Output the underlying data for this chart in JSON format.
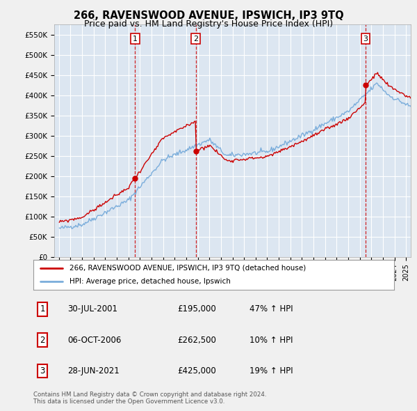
{
  "title": "266, RAVENSWOOD AVENUE, IPSWICH, IP3 9TQ",
  "subtitle": "Price paid vs. HM Land Registry's House Price Index (HPI)",
  "background_color": "#f0f0f0",
  "plot_bg_color": "#dce6f1",
  "grid_color": "#ffffff",
  "ylim": [
    0,
    575000
  ],
  "yticks": [
    0,
    50000,
    100000,
    150000,
    200000,
    250000,
    300000,
    350000,
    400000,
    450000,
    500000,
    550000
  ],
  "ytick_labels": [
    "£0",
    "£50K",
    "£100K",
    "£150K",
    "£200K",
    "£250K",
    "£300K",
    "£350K",
    "£400K",
    "£450K",
    "£500K",
    "£550K"
  ],
  "legend_line1": "266, RAVENSWOOD AVENUE, IPSWICH, IP3 9TQ (detached house)",
  "legend_line2": "HPI: Average price, detached house, Ipswich",
  "table_rows": [
    [
      "1",
      "30-JUL-2001",
      "£195,000",
      "47% ↑ HPI"
    ],
    [
      "2",
      "06-OCT-2006",
      "£262,500",
      "10% ↑ HPI"
    ],
    [
      "3",
      "28-JUN-2021",
      "£425,000",
      "19% ↑ HPI"
    ]
  ],
  "footnote1": "Contains HM Land Registry data © Crown copyright and database right 2024.",
  "footnote2": "This data is licensed under the Open Government Licence v3.0.",
  "red_color": "#cc0000",
  "blue_color": "#7aaddb"
}
